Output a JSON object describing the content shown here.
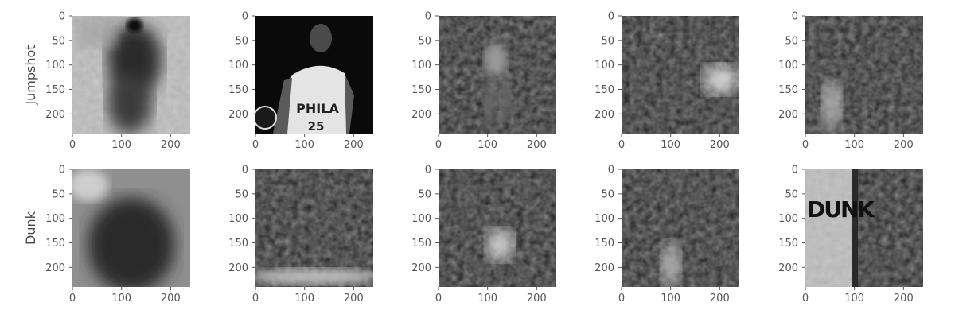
{
  "chart_data": {
    "type": "image-grid",
    "rows": [
      "Jumpshot",
      "Dunk"
    ],
    "columns": 5,
    "xlim": [
      0,
      240
    ],
    "ylim": [
      240,
      0
    ],
    "xticks": [
      0,
      100,
      200
    ],
    "yticks": [
      0,
      50,
      100,
      150,
      200
    ],
    "colormap": "gray",
    "panels": [
      {
        "row": "Jumpshot",
        "col": 1,
        "content": "diffuse bright field with dark silhouette of a player shooting",
        "base": "light"
      },
      {
        "row": "Jumpshot",
        "col": 2,
        "content": "photo of basketball player in PHILA jersey number 25",
        "base": "photo",
        "jersey_text": "PHILA",
        "jersey_number": "25"
      },
      {
        "row": "Jumpshot",
        "col": 3,
        "content": "faint standing player figure in center",
        "base": "dark"
      },
      {
        "row": "Jumpshot",
        "col": 4,
        "content": "bright blob at right middle",
        "base": "dark"
      },
      {
        "row": "Jumpshot",
        "col": 5,
        "content": "bright vertical streak lower left",
        "base": "dark"
      },
      {
        "row": "Dunk",
        "col": 1,
        "content": "noisy light texture with darker center",
        "base": "light"
      },
      {
        "row": "Dunk",
        "col": 2,
        "content": "dark field with bright band along bottom",
        "base": "dark"
      },
      {
        "row": "Dunk",
        "col": 3,
        "content": "bright blob at center",
        "base": "dark"
      },
      {
        "row": "Dunk",
        "col": 4,
        "content": "bright vertical blob lower center",
        "base": "dark"
      },
      {
        "row": "Dunk",
        "col": 5,
        "content": "light textured left half with dark lettering, dark right half",
        "base": "mixed",
        "text": "DUNK"
      }
    ]
  },
  "colors": {
    "background": "#ffffff",
    "tick_color": "#555555",
    "label_color": "#444444"
  }
}
